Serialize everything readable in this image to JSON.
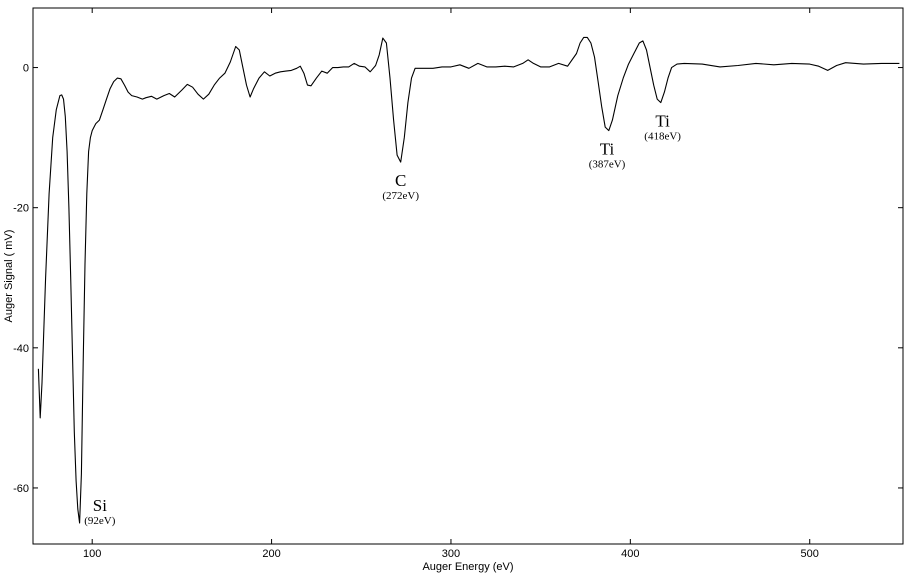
{
  "chart_data": {
    "type": "line",
    "title": "",
    "xlabel": "Auger Energy (eV)",
    "ylabel": "Auger Signal ( mV)",
    "xlim": [
      67,
      552
    ],
    "ylim": [
      -68,
      8.5
    ],
    "x_ticks": [
      100,
      200,
      300,
      400,
      500
    ],
    "y_ticks": [
      0,
      -20,
      -40,
      -60
    ],
    "grid": false,
    "legend": "none",
    "line_color": "#000000",
    "series": [
      {
        "x": [
          70,
          71,
          72,
          74,
          76,
          78,
          80,
          82,
          83,
          84,
          85,
          86,
          87,
          88,
          89,
          90,
          91,
          92,
          93,
          94,
          95,
          96,
          97,
          98,
          99,
          100,
          102,
          104,
          106,
          108,
          110,
          112,
          114,
          116,
          118,
          120,
          122,
          125,
          128,
          130,
          133,
          136,
          140,
          143,
          146,
          150,
          153,
          156,
          159,
          162,
          165,
          168,
          171,
          174,
          177,
          180,
          182,
          184,
          186,
          188,
          190,
          193,
          196,
          199,
          202,
          205,
          208,
          211,
          214,
          216,
          218,
          220,
          222,
          225,
          228,
          231,
          234,
          237,
          240,
          243,
          246,
          249,
          252,
          255,
          258,
          260,
          262,
          264,
          266,
          268,
          270,
          272,
          274,
          276,
          278,
          280,
          285,
          290,
          295,
          300,
          305,
          310,
          315,
          320,
          325,
          330,
          335,
          340,
          343,
          346,
          350,
          355,
          360,
          365,
          370,
          372,
          374,
          376,
          378,
          380,
          382,
          384,
          386,
          388,
          390,
          393,
          396,
          399,
          402,
          405,
          407,
          409,
          411,
          413,
          415,
          417,
          419,
          421,
          423,
          426,
          430,
          440,
          450,
          460,
          470,
          480,
          490,
          500,
          505,
          510,
          515,
          520,
          530,
          540,
          550
        ],
        "y": [
          -43,
          -50,
          -45,
          -30,
          -18,
          -10,
          -6,
          -4,
          -3.9,
          -4.5,
          -7,
          -12,
          -20,
          -30,
          -41,
          -52,
          -59,
          -63,
          -65,
          -58,
          -42,
          -28,
          -18,
          -12,
          -10,
          -9,
          -8,
          -7.5,
          -6,
          -4.5,
          -3,
          -2,
          -1.5,
          -1.6,
          -2.5,
          -3.5,
          -4,
          -4.2,
          -4.5,
          -4.3,
          -4.1,
          -4.5,
          -4.0,
          -3.7,
          -4.2,
          -3.2,
          -2.4,
          -2.8,
          -3.8,
          -4.5,
          -3.8,
          -2.5,
          -1.5,
          -0.8,
          0.8,
          3,
          2.5,
          0,
          -2.5,
          -4.2,
          -3,
          -1.5,
          -0.6,
          -1.2,
          -0.8,
          -0.6,
          -0.5,
          -0.4,
          -0.1,
          0.2,
          -0.8,
          -2.5,
          -2.6,
          -1.5,
          -0.5,
          -0.8,
          0,
          0,
          0.1,
          0.1,
          0.6,
          0.2,
          0.1,
          -0.6,
          0.3,
          1.8,
          4.2,
          3.5,
          -1.5,
          -7.5,
          -12.5,
          -13.5,
          -10,
          -5,
          -1.5,
          -0.1,
          -0.1,
          -0.1,
          0.1,
          0.1,
          0.4,
          -0.1,
          0.6,
          0.1,
          0.1,
          0.2,
          0.1,
          0.6,
          1.1,
          0.6,
          0.1,
          0.1,
          0.6,
          0.2,
          2,
          3.5,
          4.3,
          4.3,
          3.5,
          1.5,
          -2,
          -5.5,
          -8.5,
          -9,
          -7.5,
          -4,
          -1.5,
          0.5,
          2,
          3.5,
          3.8,
          2.5,
          0,
          -2.5,
          -4.5,
          -5,
          -3.5,
          -1.5,
          0,
          0.5,
          0.6,
          0.5,
          0.1,
          0.3,
          0.6,
          0.4,
          0.6,
          0.5,
          0.2,
          -0.4,
          0.3,
          0.7,
          0.5,
          0.6,
          0.6
        ]
      }
    ],
    "annotations": [
      {
        "element": "Si",
        "energy": "(92eV)",
        "x": 92,
        "y": -65
      },
      {
        "element": "C",
        "energy": "(272eV)",
        "x": 272,
        "y": -13.5
      },
      {
        "element": "Ti",
        "energy": "(387eV)",
        "x": 387,
        "y": -9
      },
      {
        "element": "Ti",
        "energy": "(418eV)",
        "x": 418,
        "y": -5
      }
    ]
  }
}
